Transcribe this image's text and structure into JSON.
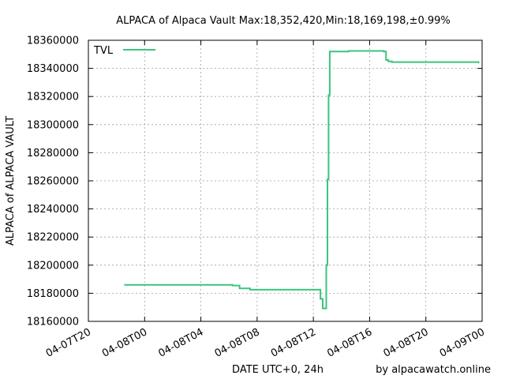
{
  "chart_data": {
    "type": "line",
    "title": "ALPACA of Alpaca Vault Max:18,352,420,Min:18,169,198,±0.99%",
    "xlabel": "DATE UTC+0, 24h",
    "ylabel": "ALPACA of ALPACA VAULT",
    "credit": "by alpacawatch.online",
    "ylim": [
      18160000,
      18360000
    ],
    "ytick_values": [
      18160000,
      18180000,
      18200000,
      18220000,
      18240000,
      18260000,
      18280000,
      18300000,
      18320000,
      18340000,
      18360000
    ],
    "ytick_labels": [
      "18160000",
      "18180000",
      "18200000",
      "18220000",
      "18240000",
      "18260000",
      "18280000",
      "18300000",
      "18320000",
      "18340000",
      "18360000"
    ],
    "xlim": [
      "04-07T20:00",
      "04-09T00:00"
    ],
    "xtick_values": [
      "04-07T20:00",
      "04-08T00:00",
      "04-08T04:00",
      "04-08T08:00",
      "04-08T12:00",
      "04-08T16:00",
      "04-08T20:00",
      "04-09T00:00"
    ],
    "xtick_labels": [
      "04-07T20",
      "04-08T00",
      "04-08T04",
      "04-08T08",
      "04-08T12",
      "04-08T16",
      "04-08T20",
      "04-09T00"
    ],
    "grid": true,
    "legend_position": "top-left",
    "line_color": "#3cc47c",
    "series": [
      {
        "name": "TVL",
        "step": true,
        "x": [
          "04-07T22:35",
          "04-08T06:00",
          "04-08T06:15",
          "04-08T06:30",
          "04-08T06:45",
          "04-08T07:15",
          "04-08T07:30",
          "04-08T07:45",
          "04-08T08:00",
          "04-08T08:30",
          "04-08T12:00",
          "04-08T12:30",
          "04-08T12:40",
          "04-08T12:50",
          "04-08T12:55",
          "04-08T13:00",
          "04-08T13:05",
          "04-08T13:10",
          "04-08T13:20",
          "04-08T13:30",
          "04-08T14:30",
          "04-08T17:00",
          "04-08T17:10",
          "04-08T17:20",
          "04-08T17:35",
          "04-08T23:10",
          "04-08T23:45"
        ],
        "values": [
          18186000,
          18186000,
          18185500,
          18185500,
          18183500,
          18183500,
          18182500,
          18182500,
          18182500,
          18182500,
          18182500,
          18176000,
          18169198,
          18169198,
          18200000,
          18261000,
          18321000,
          18352000,
          18352000,
          18352000,
          18352420,
          18352000,
          18346000,
          18345000,
          18344500,
          18344500,
          18344000
        ]
      }
    ]
  }
}
